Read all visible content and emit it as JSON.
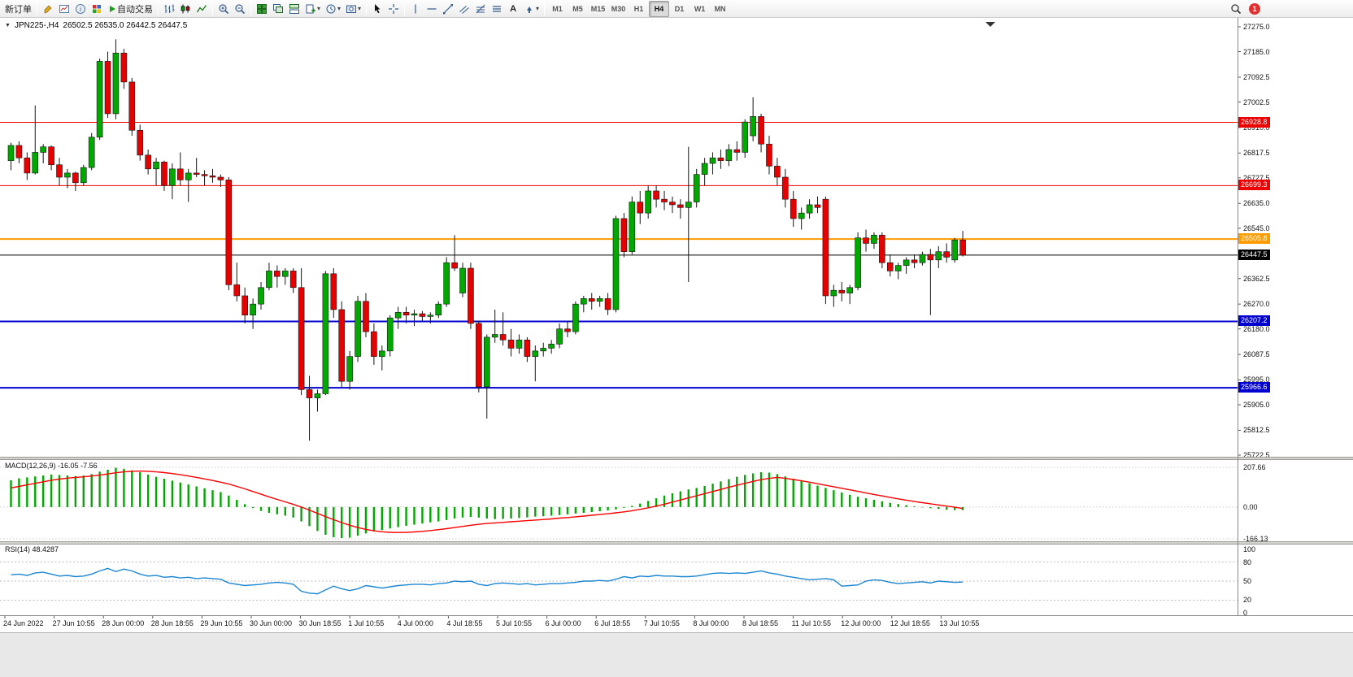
{
  "toolbar": {
    "new_order": "新订单",
    "auto_trading": "自动交易",
    "text_tool": "A",
    "timeframes": [
      "M1",
      "M5",
      "M15",
      "M30",
      "H1",
      "H4",
      "D1",
      "W1",
      "MN"
    ],
    "active_timeframe": "H4",
    "notification_count": "1"
  },
  "chart": {
    "symbol_period": "JPN225-,H4",
    "ohlc": "26502.5 26535.0 26442.5 26447.5"
  },
  "chart_data": {
    "type": "candlestick",
    "symbol": "JPN225-",
    "timeframe": "H4",
    "colors": {
      "up": "#00A800",
      "down": "#E60000",
      "wick": "#151515",
      "macd_hist": "#00A800",
      "macd_signal": "#FF0000",
      "rsi": "#1C86D1",
      "level_red": "#EE0000",
      "level_orange": "#FF9C00",
      "level_blue": "#0000D0",
      "current": "#000000"
    },
    "price_axis": {
      "min": 25722.5,
      "max": 27275.0,
      "ticks": [
        "27275.0",
        "27185.0",
        "27092.5",
        "27002.5",
        "26910.0",
        "26817.5",
        "26727.5",
        "26635.0",
        "26545.0",
        "26362.5",
        "26270.0",
        "26180.0",
        "26087.5",
        "25995.0",
        "25905.0",
        "25812.5",
        "25722.5"
      ]
    },
    "levels": [
      {
        "price": 26928.8,
        "label": "26928.8",
        "color": "#EE0000",
        "width": 1
      },
      {
        "price": 26699.3,
        "label": "26699.3",
        "color": "#EE0000",
        "width": 1
      },
      {
        "price": 26505.8,
        "label": "26505.8",
        "color": "#FF9C00",
        "width": 2
      },
      {
        "price": 26207.2,
        "label": "26207.2",
        "color": "#0000D0",
        "width": 2
      },
      {
        "price": 25966.6,
        "label": "25966.6",
        "color": "#0000D0",
        "width": 2
      }
    ],
    "current_price": 26447.5,
    "current_price_label": "26447.5",
    "time_labels": [
      "24 Jun 2022",
      "27 Jun 10:55",
      "28 Jun 00:00",
      "28 Jun 18:55",
      "29 Jun 10:55",
      "30 Jun 00:00",
      "30 Jun 18:55",
      "1 Jul 10:55",
      "4 Jul 00:00",
      "4 Jul 18:55",
      "5 Jul 10:55",
      "6 Jul 00:00",
      "6 Jul 18:55",
      "7 Jul 10:55",
      "8 Jul 00:00",
      "8 Jul 18:55",
      "11 Jul 10:55",
      "12 Jul 00:00",
      "12 Jul 18:55",
      "13 Jul 10:55"
    ],
    "candles": [
      [
        26790,
        26855,
        26755,
        26845
      ],
      [
        26845,
        26860,
        26780,
        26800
      ],
      [
        26800,
        26820,
        26720,
        26745
      ],
      [
        26745,
        26990,
        26740,
        26820
      ],
      [
        26820,
        26850,
        26780,
        26840
      ],
      [
        26840,
        26845,
        26755,
        26775
      ],
      [
        26775,
        26800,
        26700,
        26730
      ],
      [
        26730,
        26760,
        26690,
        26745
      ],
      [
        26745,
        26750,
        26680,
        26710
      ],
      [
        26710,
        26775,
        26700,
        26765
      ],
      [
        26765,
        26890,
        26755,
        26875
      ],
      [
        26875,
        27160,
        26865,
        27150
      ],
      [
        27150,
        27185,
        26945,
        26960
      ],
      [
        26960,
        27230,
        26940,
        27180
      ],
      [
        27180,
        27195,
        27050,
        27075
      ],
      [
        27075,
        27090,
        26880,
        26900
      ],
      [
        26900,
        26920,
        26790,
        26810
      ],
      [
        26810,
        26830,
        26740,
        26760
      ],
      [
        26760,
        26800,
        26700,
        26785
      ],
      [
        26785,
        26790,
        26680,
        26700
      ],
      [
        26700,
        26780,
        26650,
        26760
      ],
      [
        26760,
        26820,
        26700,
        26720
      ],
      [
        26720,
        26760,
        26640,
        26745
      ],
      [
        26745,
        26800,
        26730,
        26740
      ],
      [
        26740,
        26755,
        26700,
        26735
      ],
      [
        26735,
        26760,
        26710,
        26730
      ],
      [
        26730,
        26740,
        26695,
        26720
      ],
      [
        26720,
        26730,
        26320,
        26340
      ],
      [
        26340,
        26420,
        26280,
        26300
      ],
      [
        26300,
        26330,
        26200,
        26230
      ],
      [
        26230,
        26290,
        26180,
        26270
      ],
      [
        26270,
        26350,
        26250,
        26330
      ],
      [
        26330,
        26420,
        26320,
        26390
      ],
      [
        26390,
        26410,
        26330,
        26370
      ],
      [
        26370,
        26400,
        26340,
        26390
      ],
      [
        26390,
        26400,
        26310,
        26330
      ],
      [
        26330,
        26400,
        25940,
        25960
      ],
      [
        25960,
        26010,
        25775,
        25930
      ],
      [
        25930,
        25960,
        25880,
        25945
      ],
      [
        25945,
        26390,
        25940,
        26380
      ],
      [
        26380,
        26400,
        26220,
        26250
      ],
      [
        26250,
        26280,
        25970,
        25990
      ],
      [
        25990,
        26100,
        25960,
        26080
      ],
      [
        26080,
        26300,
        26060,
        26280
      ],
      [
        26280,
        26310,
        26150,
        26170
      ],
      [
        26170,
        26200,
        26050,
        26080
      ],
      [
        26080,
        26120,
        26030,
        26100
      ],
      [
        26100,
        26230,
        26080,
        26220
      ],
      [
        26220,
        26260,
        26180,
        26240
      ],
      [
        26240,
        26260,
        26200,
        26230
      ],
      [
        26230,
        26250,
        26190,
        26235
      ],
      [
        26235,
        26245,
        26205,
        26225
      ],
      [
        26225,
        26240,
        26200,
        26230
      ],
      [
        26230,
        26280,
        26220,
        26270
      ],
      [
        26270,
        26440,
        26260,
        26420
      ],
      [
        26420,
        26520,
        26390,
        26400
      ],
      [
        26310,
        26420,
        26295,
        26400
      ],
      [
        26400,
        26420,
        26180,
        26200
      ],
      [
        26200,
        26210,
        25950,
        25970
      ],
      [
        25970,
        26160,
        25855,
        26150
      ],
      [
        26150,
        26250,
        26130,
        26160
      ],
      [
        26160,
        26240,
        26120,
        26140
      ],
      [
        26140,
        26180,
        26080,
        26110
      ],
      [
        26110,
        26160,
        26090,
        26140
      ],
      [
        26140,
        26150,
        26060,
        26080
      ],
      [
        26080,
        26120,
        25990,
        26100
      ],
      [
        26100,
        26130,
        26080,
        26110
      ],
      [
        26110,
        26140,
        26090,
        26125
      ],
      [
        26125,
        26200,
        26110,
        26180
      ],
      [
        26180,
        26210,
        26150,
        26170
      ],
      [
        26170,
        26280,
        26160,
        26270
      ],
      [
        26270,
        26300,
        26240,
        26290
      ],
      [
        26290,
        26310,
        26250,
        26280
      ],
      [
        26280,
        26300,
        26260,
        26290
      ],
      [
        26290,
        26310,
        26230,
        26250
      ],
      [
        26250,
        26590,
        26240,
        26580
      ],
      [
        26580,
        26600,
        26440,
        26460
      ],
      [
        26460,
        26660,
        26450,
        26640
      ],
      [
        26640,
        26680,
        26560,
        26600
      ],
      [
        26600,
        26700,
        26580,
        26680
      ],
      [
        26680,
        26700,
        26620,
        26650
      ],
      [
        26650,
        26680,
        26610,
        26640
      ],
      [
        26640,
        26660,
        26600,
        26630
      ],
      [
        26630,
        26650,
        26580,
        26620
      ],
      [
        26620,
        26840,
        26350,
        26640
      ],
      [
        26640,
        26760,
        26620,
        26740
      ],
      [
        26740,
        26800,
        26700,
        26780
      ],
      [
        26780,
        26820,
        26740,
        26800
      ],
      [
        26800,
        26830,
        26760,
        26790
      ],
      [
        26790,
        26850,
        26770,
        26830
      ],
      [
        26830,
        26860,
        26790,
        26820
      ],
      [
        26820,
        26940,
        26800,
        26930
      ],
      [
        26880,
        27020,
        26860,
        26950
      ],
      [
        26950,
        26960,
        26820,
        26850
      ],
      [
        26850,
        26880,
        26740,
        26770
      ],
      [
        26770,
        26800,
        26700,
        26730
      ],
      [
        26730,
        26760,
        26620,
        26650
      ],
      [
        26650,
        26680,
        26550,
        26580
      ],
      [
        26580,
        26620,
        26540,
        26600
      ],
      [
        26600,
        26650,
        26580,
        26630
      ],
      [
        26630,
        26660,
        26600,
        26620
      ],
      [
        26650,
        26660,
        26270,
        26300
      ],
      [
        26300,
        26340,
        26260,
        26320
      ],
      [
        26320,
        26350,
        26280,
        26310
      ],
      [
        26310,
        26340,
        26270,
        26330
      ],
      [
        26330,
        26530,
        26320,
        26510
      ],
      [
        26510,
        26540,
        26460,
        26490
      ],
      [
        26490,
        26530,
        26470,
        26520
      ],
      [
        26520,
        26530,
        26400,
        26420
      ],
      [
        26420,
        26450,
        26370,
        26390
      ],
      [
        26390,
        26420,
        26360,
        26410
      ],
      [
        26410,
        26440,
        26380,
        26430
      ],
      [
        26430,
        26450,
        26400,
        26420
      ],
      [
        26420,
        26460,
        26410,
        26450
      ],
      [
        26450,
        26470,
        26230,
        26430
      ],
      [
        26430,
        26480,
        26400,
        26460
      ],
      [
        26460,
        26490,
        26420,
        26440
      ],
      [
        26430,
        26510,
        26420,
        26502.5
      ],
      [
        26502.5,
        26535,
        26442.5,
        26447.5
      ]
    ],
    "macd": {
      "name": "MACD(12,26,9)",
      "value_text": "-16.05 -7.56",
      "scale": [
        "207.66",
        "0.00",
        "-166.13"
      ],
      "histogram": [
        140,
        150,
        155,
        160,
        165,
        170,
        168,
        165,
        162,
        165,
        172,
        185,
        195,
        205,
        200,
        192,
        182,
        170,
        158,
        148,
        138,
        128,
        118,
        108,
        98,
        88,
        78,
        60,
        38,
        15,
        -5,
        -20,
        -30,
        -38,
        -45,
        -55,
        -75,
        -100,
        -125,
        -145,
        -158,
        -162,
        -160,
        -150,
        -138,
        -128,
        -120,
        -112,
        -105,
        -98,
        -92,
        -86,
        -80,
        -75,
        -68,
        -60,
        -55,
        -52,
        -55,
        -60,
        -63,
        -62,
        -60,
        -57,
        -54,
        -50,
        -48,
        -45,
        -42,
        -38,
        -34,
        -30,
        -26,
        -22,
        -18,
        -12,
        -4,
        6,
        18,
        32,
        46,
        60,
        72,
        82,
        92,
        100,
        110,
        122,
        134,
        146,
        158,
        168,
        176,
        182,
        180,
        172,
        160,
        148,
        136,
        124,
        112,
        100,
        88,
        76,
        64,
        54,
        46,
        38,
        30,
        22,
        16,
        10,
        4,
        -2,
        -6,
        -10,
        -14,
        -16,
        -16.05
      ],
      "signal": [
        100,
        108,
        116,
        124,
        132,
        140,
        146,
        151,
        155,
        158,
        162,
        167,
        173,
        179,
        184,
        187,
        188,
        187,
        184,
        180,
        175,
        169,
        162,
        155,
        147,
        139,
        130,
        120,
        108,
        95,
        81,
        67,
        53,
        40,
        27,
        14,
        0,
        -16,
        -33,
        -50,
        -66,
        -81,
        -95,
        -107,
        -117,
        -124,
        -129,
        -132,
        -133,
        -132,
        -130,
        -127,
        -123,
        -118,
        -113,
        -107,
        -101,
        -95,
        -90,
        -86,
        -83,
        -80,
        -77,
        -74,
        -71,
        -68,
        -65,
        -62,
        -58,
        -55,
        -51,
        -47,
        -43,
        -39,
        -35,
        -30,
        -25,
        -19,
        -12,
        -4,
        5,
        15,
        26,
        37,
        48,
        59,
        70,
        81,
        92,
        103,
        114,
        124,
        134,
        143,
        150,
        155,
        150,
        144,
        137,
        130,
        122,
        114,
        106,
        98,
        90,
        82,
        74,
        66,
        58,
        50,
        43,
        36,
        29,
        23,
        17,
        11,
        5,
        -1,
        -7.56
      ]
    },
    "rsi": {
      "name": "RSI(14)",
      "value_text": "48.4287",
      "levels": [
        "100",
        "80",
        "50",
        "20",
        "0"
      ],
      "values": [
        60,
        61,
        59,
        63,
        64,
        61,
        58,
        59,
        57,
        58,
        61,
        66,
        70,
        65,
        69,
        66,
        61,
        58,
        59,
        56,
        57,
        55,
        56,
        54,
        55,
        54,
        53,
        47,
        45,
        43,
        44,
        45,
        47,
        48,
        47,
        45,
        34,
        31,
        30,
        36,
        42,
        38,
        35,
        38,
        43,
        41,
        39,
        41,
        43,
        44,
        45,
        45,
        44,
        46,
        47,
        50,
        49,
        50,
        45,
        43,
        46,
        47,
        46,
        45,
        46,
        44,
        45,
        46,
        46,
        47,
        48,
        50,
        50,
        51,
        50,
        53,
        57,
        55,
        58,
        57,
        59,
        58,
        58,
        57,
        57,
        58,
        60,
        62,
        63,
        62,
        63,
        62,
        64,
        66,
        63,
        61,
        58,
        56,
        54,
        52,
        53,
        54,
        52,
        42,
        43,
        44,
        50,
        52,
        51,
        48,
        46,
        47,
        48,
        49,
        47,
        50,
        49,
        48,
        48.43
      ]
    }
  }
}
